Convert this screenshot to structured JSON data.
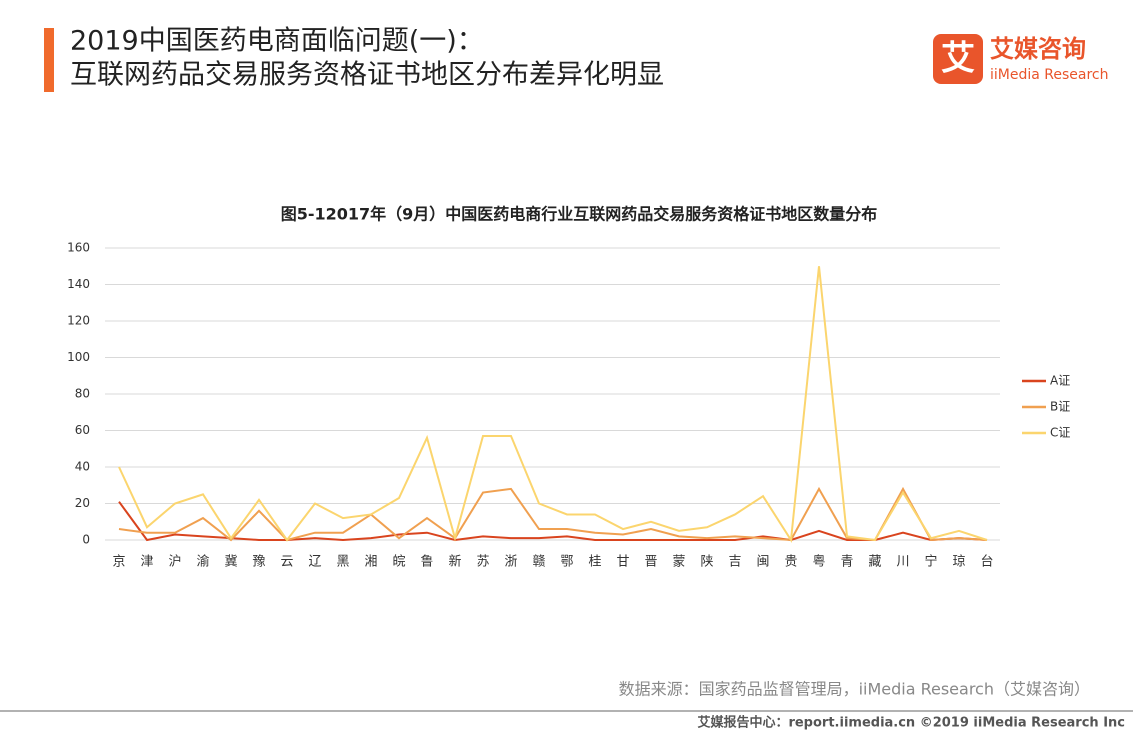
{
  "header": {
    "title_line1": "2019中国医药电商面临问题(一)：",
    "title_line2": "互联网药品交易服务资格证书地区分布差异化明显",
    "logo_icon": "艾",
    "logo_name": "艾媒咨询",
    "logo_sub": "iiMedia Research"
  },
  "chart_data": {
    "type": "line",
    "title": "图5-12017年（9月）中国医药电商行业互联网药品交易服务资格证书地区数量分布",
    "categories": [
      "京",
      "津",
      "沪",
      "渝",
      "冀",
      "豫",
      "云",
      "辽",
      "黑",
      "湘",
      "皖",
      "鲁",
      "新",
      "苏",
      "浙",
      "赣",
      "鄂",
      "桂",
      "甘",
      "晋",
      "蒙",
      "陕",
      "吉",
      "闽",
      "贵",
      "粤",
      "青",
      "藏",
      "川",
      "宁",
      "琼",
      "台"
    ],
    "series": [
      {
        "name": "A证",
        "color": "#d9441e",
        "values": [
          21,
          0,
          3,
          2,
          1,
          0,
          0,
          1,
          0,
          1,
          3,
          4,
          0,
          2,
          1,
          1,
          2,
          0,
          0,
          0,
          0,
          0,
          0,
          2,
          0,
          5,
          0,
          0,
          4,
          0,
          1,
          0
        ]
      },
      {
        "name": "B证",
        "color": "#f0a050",
        "values": [
          6,
          4,
          4,
          12,
          0,
          16,
          0,
          4,
          4,
          14,
          1,
          12,
          1,
          26,
          28,
          6,
          6,
          4,
          3,
          6,
          2,
          1,
          2,
          1,
          0,
          28,
          1,
          0,
          28,
          0,
          1,
          0
        ]
      },
      {
        "name": "C证",
        "color": "#fbd56e",
        "values": [
          40,
          7,
          20,
          25,
          1,
          22,
          0,
          20,
          12,
          14,
          23,
          56,
          1,
          57,
          57,
          20,
          14,
          14,
          6,
          10,
          5,
          7,
          14,
          24,
          0,
          150,
          2,
          0,
          26,
          1,
          5,
          0
        ]
      }
    ],
    "ylim": [
      0,
      160
    ],
    "yticks": [
      0,
      20,
      40,
      60,
      80,
      100,
      120,
      140,
      160
    ],
    "grid": true,
    "legend": "right"
  },
  "footer": {
    "source": "数据来源：国家药品监督管理局，iiMedia Research（艾媒咨询）",
    "copyright": "艾媒报告中心：report.iimedia.cn ©2019 iiMedia Research Inc"
  }
}
